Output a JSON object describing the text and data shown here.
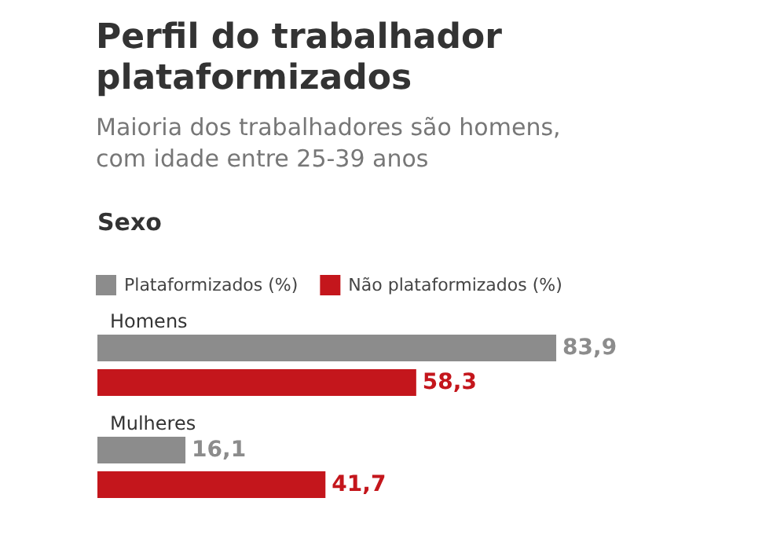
{
  "chart_data": {
    "type": "bar",
    "orientation": "horizontal",
    "title": "Perfil do trabalhador\nplataformizados",
    "subtitle": "Maioria dos trabalhadores são homens,\ncom idade entre 25-39 anos",
    "annotations": [
      "Sexo"
    ],
    "categories": [
      "Homens",
      "Mulheres"
    ],
    "series": [
      {
        "name": "Plataformizados (%)",
        "color": "#8c8c8c",
        "values": [
          83.9,
          16.1
        ],
        "value_labels": [
          "83,9",
          "16,1"
        ]
      },
      {
        "name": "Não plataformizados (%)",
        "color": "#c4161c",
        "values": [
          58.3,
          41.7
        ],
        "value_labels": [
          "58,3",
          "41,7"
        ]
      }
    ],
    "legend": "top left"
  }
}
